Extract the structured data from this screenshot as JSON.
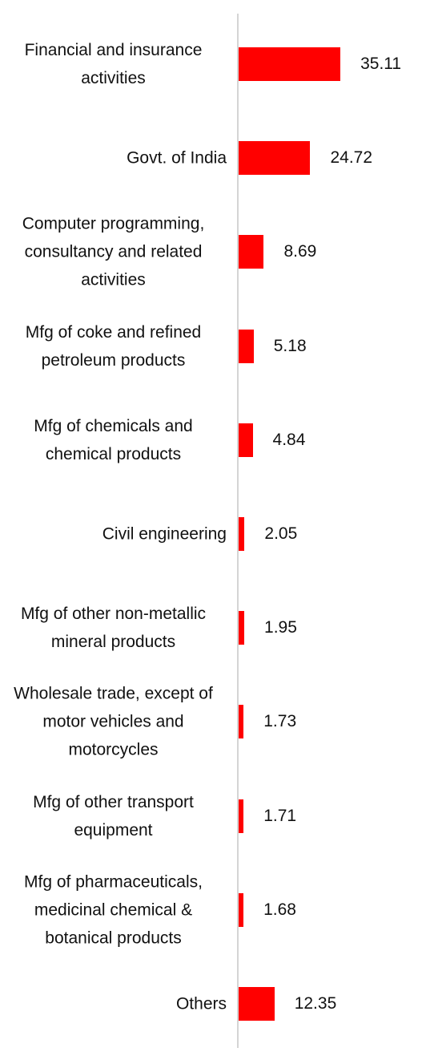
{
  "chart_data": {
    "type": "bar",
    "orientation": "horizontal",
    "categories": [
      "Financial and insurance activities",
      "Govt. of India",
      "Computer programming, consultancy and related activities",
      "Mfg of coke and refined petroleum products",
      "Mfg of chemicals and chemical products",
      "Civil engineering",
      "Mfg of other non-metallic mineral products",
      "Wholesale trade, except of motor vehicles and motorcycles",
      "Mfg of other transport equipment",
      "Mfg of pharmaceuticals, medicinal chemical & botanical products",
      "Others"
    ],
    "values": [
      35.11,
      24.72,
      8.69,
      5.18,
      4.84,
      2.05,
      1.95,
      1.73,
      1.71,
      1.68,
      12.35
    ],
    "color": "#ff0000"
  }
}
